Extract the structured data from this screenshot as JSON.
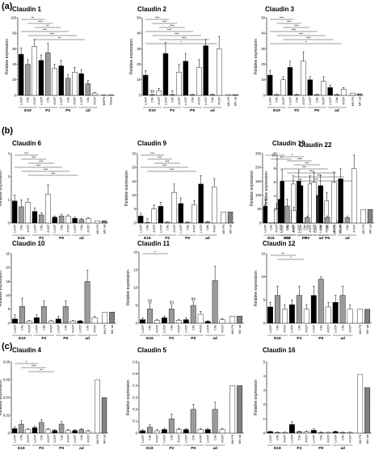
{
  "panels": [
    "(a)",
    "(b)",
    "(c)"
  ],
  "ylabel": "Relative expression",
  "colors": {
    "LVCP": "#000000",
    "Crtx": "#9a9a9a",
    "4VCP": "#ffffff",
    "MV_P9": "#ffffff",
    "MV_ad": "pattern-checker"
  },
  "chart_data": [
    {
      "type": "bar",
      "title": "Claudin 1",
      "ylabel": "Relative expression",
      "ylim": [
        0,
        100
      ],
      "yticks": [
        0,
        20,
        40,
        60,
        80,
        100
      ],
      "categories": [
        "LVCP",
        "Crtx",
        "4VCP",
        "LVCP",
        "Crtx",
        "4VCP",
        "LVCP",
        "Crtx",
        "4VCP",
        "LVCP",
        "Crtx",
        "4VCP",
        "MVP9",
        "MVad"
      ],
      "groups": [
        "E19",
        "P2",
        "P9",
        "ad"
      ],
      "values": [
        53,
        40,
        63,
        45,
        55,
        35,
        38,
        22,
        30,
        28,
        15,
        3,
        0.5,
        0.5
      ],
      "errors": [
        8,
        6,
        9,
        7,
        12,
        5,
        7,
        5,
        6,
        5,
        4,
        1,
        0,
        0
      ],
      "significance": [
        "**",
        "***",
        "**",
        "***",
        "***",
        "**"
      ]
    },
    {
      "type": "bar",
      "title": "Claudin 2",
      "ylabel": "Relative expression",
      "ylim": [
        0,
        50
      ],
      "yticks": [
        0,
        10,
        20,
        30,
        40,
        50
      ],
      "categories": [
        "LVCP",
        "Crtx",
        "4VCP",
        "LVCP",
        "Crtx",
        "4VCP",
        "LVCP",
        "Crtx",
        "4VCP",
        "LVCP",
        "Crtx",
        "4VCP",
        "MV P9",
        "MV ad"
      ],
      "groups": [
        "E19",
        "P2",
        "P9",
        "ad"
      ],
      "values": [
        13,
        0.5,
        3,
        27,
        0.5,
        15,
        22,
        0.5,
        18,
        32,
        0.5,
        30,
        0.5,
        0.5
      ],
      "errors": [
        3,
        0.2,
        1.5,
        7,
        0.2,
        5,
        5,
        0.2,
        5,
        4,
        0.2,
        8,
        0,
        0
      ],
      "annotations": [
        "§§",
        "§"
      ],
      "significance": [
        "***",
        "***",
        "***",
        "***",
        "***",
        "***",
        "*"
      ]
    },
    {
      "type": "bar",
      "title": "Claudin 3",
      "ylabel": "Relative expression",
      "ylim": [
        0,
        50
      ],
      "yticks": [
        0,
        10,
        20,
        30,
        40,
        50
      ],
      "categories": [
        "LVCP",
        "Crtx",
        "4VCP",
        "LVCP",
        "Crtx",
        "4VCP",
        "LVCP",
        "Crtx",
        "4VCP",
        "LVCP",
        "Crtx",
        "4VCP",
        "MV P9",
        "MV ad"
      ],
      "groups": [
        "E19",
        "P2",
        "P9",
        "ad"
      ],
      "values": [
        13,
        0.5,
        10,
        18,
        0.5,
        22,
        10,
        0.5,
        9,
        5,
        0.5,
        4,
        1.5,
        1
      ],
      "errors": [
        3,
        0.2,
        2,
        4,
        0.2,
        6,
        2,
        0.2,
        3,
        1.5,
        0.2,
        1,
        0,
        0
      ],
      "significance": [
        "***",
        "***",
        "***",
        "***",
        "***",
        "***",
        "*"
      ]
    },
    {
      "type": "bar",
      "title": "Claudin 6",
      "ylabel": "Relative expression",
      "ylim": [
        0,
        3
      ],
      "yticks": [
        0,
        1,
        2,
        3
      ],
      "categories": [
        "LVCP",
        "Crtx",
        "4VCP",
        "LVCP",
        "Crtx",
        "4VCP",
        "LVCP",
        "Crtx",
        "4VCP",
        "LVCP",
        "Crtx",
        "4VCP",
        "MV P9",
        "MV ad"
      ],
      "groups": [
        "E19",
        "P2",
        "P9",
        "ad"
      ],
      "values": [
        0.95,
        0.7,
        0.9,
        0.5,
        0.35,
        1.25,
        0.25,
        0.3,
        0.3,
        0.2,
        0.15,
        0.2,
        0.1,
        0.1
      ],
      "errors": [
        0.25,
        0.3,
        0.15,
        0.15,
        0.1,
        0.4,
        0.05,
        0.08,
        0.05,
        0.05,
        0.04,
        0.04,
        0,
        0
      ],
      "significance": [
        "***",
        "***",
        "***",
        "***",
        "***",
        "***"
      ]
    },
    {
      "type": "bar",
      "title": "Claudin 9",
      "ylabel": "Relative expression",
      "ylim": [
        0,
        25
      ],
      "yticks": [
        0,
        5,
        10,
        15,
        20,
        25
      ],
      "categories": [
        "LVCP",
        "Crtx",
        "4VCP",
        "LVCP",
        "Crtx",
        "4VCP",
        "LVCP",
        "Crtx",
        "4VCP",
        "LVCP",
        "Crtx",
        "4VCP",
        "MV P9",
        "MV ad"
      ],
      "groups": [
        "E19",
        "P2",
        "P9",
        "ad"
      ],
      "values": [
        2.5,
        0.2,
        5,
        6,
        0.3,
        11,
        7,
        0.3,
        6.5,
        14,
        0.4,
        13,
        4,
        4
      ],
      "errors": [
        1,
        0.1,
        1.5,
        1.5,
        0.1,
        3,
        2,
        0.1,
        1.5,
        3,
        0.1,
        3,
        0,
        0
      ],
      "annotations": [
        "§"
      ],
      "significance": [
        "***",
        "***",
        "***",
        "***",
        "***"
      ]
    },
    {
      "type": "bar",
      "title": "Claudin 19",
      "ylabel": "Relative expression",
      "ylim": [
        0,
        250
      ],
      "yticks": [
        0,
        50,
        100,
        150,
        200,
        250
      ],
      "categories": [
        "LVCP",
        "Crtx",
        "4VCP",
        "LVCP",
        "Crtx",
        "4VCP",
        "LVCP",
        "Crtx",
        "4VCP",
        "LVCP",
        "Crtx",
        "4VCP",
        "MV P9",
        "MV ad"
      ],
      "groups": [
        "E19",
        "P2",
        "P9",
        "ad"
      ],
      "values": [
        60,
        0.5,
        50,
        150,
        0.5,
        140,
        150,
        0.5,
        140,
        100,
        0.5,
        80,
        10,
        10
      ],
      "errors": [
        25,
        0.2,
        20,
        40,
        0.2,
        30,
        40,
        0.2,
        30,
        35,
        0.2,
        30,
        0,
        0
      ],
      "significance": [
        "***",
        "**"
      ]
    },
    {
      "type": "bar",
      "title": "Claudin 22",
      "ylabel": "Relative expression",
      "ylim": [
        0,
        10
      ],
      "yticks": [
        0,
        2,
        4,
        6,
        8,
        10
      ],
      "categories": [
        "LVCP",
        "Crtx",
        "4VCP",
        "LVCP",
        "Crtx",
        "4VCP",
        "LVCP",
        "Crtx",
        "4VCP",
        "LVCP",
        "Crtx",
        "4VCP",
        "MV P9",
        "MV ad"
      ],
      "groups": [
        "E19",
        "P2",
        "P9",
        "ad"
      ],
      "values": [
        3.5,
        2.5,
        1.8,
        5.5,
        0.8,
        6,
        5.5,
        0.8,
        6,
        6.5,
        0.8,
        8,
        2,
        2
      ],
      "errors": [
        1.5,
        1,
        0.5,
        1,
        0.2,
        1.5,
        1.5,
        0.2,
        1.5,
        1.5,
        0.2,
        2,
        0,
        0
      ],
      "significance": [
        "*",
        "***",
        "***",
        "***",
        "***",
        "***",
        "***"
      ]
    },
    {
      "type": "bar",
      "title": "Claudin 10",
      "ylabel": "Relative expression",
      "ylim": [
        0,
        25
      ],
      "yticks": [
        0,
        5,
        10,
        15,
        20,
        25
      ],
      "categories": [
        "LVCP",
        "Crtx",
        "4VCP",
        "LVCP",
        "Crtx",
        "4VCP",
        "LVCP",
        "Crtx",
        "4VCP",
        "LVCP",
        "Crtx",
        "4VCP",
        "MV P9",
        "MV ad"
      ],
      "groups": [
        "E19",
        "P2",
        "P9",
        "ad"
      ],
      "values": [
        1.5,
        6,
        0.8,
        2,
        6,
        0.8,
        1.5,
        6,
        0.8,
        0.8,
        15,
        2,
        4,
        4
      ],
      "errors": [
        1.5,
        3,
        0.3,
        1,
        2,
        0.3,
        1,
        2,
        0.3,
        0.3,
        4,
        0.5,
        0,
        0
      ]
    },
    {
      "type": "bar",
      "title": "Claudin 11",
      "ylabel": "Relative expression",
      "ylim": [
        0,
        20
      ],
      "yticks": [
        0,
        5,
        10,
        15,
        20
      ],
      "categories": [
        "LVCP",
        "Crtx",
        "4VCP",
        "LVCP",
        "Crtx",
        "4VCP",
        "LVCP",
        "Crtx",
        "4VCP",
        "LVCP",
        "Crtx",
        "4VCP",
        "MV P9",
        "MV ad"
      ],
      "groups": [
        "E19",
        "P2",
        "P9",
        "ad"
      ],
      "values": [
        1,
        4,
        0.8,
        1.5,
        4,
        0.8,
        1,
        5,
        2.5,
        0.5,
        12,
        1,
        2,
        2
      ],
      "errors": [
        0.5,
        1.5,
        0.3,
        0.5,
        1,
        0.3,
        0.5,
        1,
        0.8,
        0.2,
        4,
        0.3,
        0,
        0
      ],
      "annotations": [
        "§§",
        "§§",
        "§§"
      ],
      "significance": [
        "*"
      ]
    },
    {
      "type": "bar",
      "title": "Claudin 12",
      "ylabel": "Relative expression",
      "ylim": [
        0,
        15
      ],
      "yticks": [
        0,
        5,
        10,
        15
      ],
      "categories": [
        "LVCP",
        "Crtx",
        "4VCP",
        "LVCP",
        "Crtx",
        "4VCP",
        "LVCP",
        "Crtx",
        "4VCP",
        "LVCP",
        "Crtx",
        "4VCP",
        "MV P9",
        "MV ad"
      ],
      "groups": [
        "E19",
        "P2",
        "P9",
        "ad"
      ],
      "values": [
        3.5,
        6,
        3,
        4,
        6,
        3,
        6,
        9.5,
        3.5,
        4.5,
        6,
        3,
        3,
        3
      ],
      "errors": [
        1,
        2,
        1,
        1,
        2,
        1,
        2,
        0.5,
        1,
        1.5,
        2,
        1,
        0,
        0
      ],
      "significance": [
        "**",
        "*"
      ]
    },
    {
      "type": "bar",
      "title": "Claudin 4",
      "ylabel": "Relative expression",
      "ylim": [
        0,
        0.08
      ],
      "yticks": [
        0,
        0.02,
        0.04,
        0.06,
        0.08
      ],
      "categories": [
        "LVCP",
        "Crtx",
        "4VCP",
        "LVCP",
        "Crtx",
        "4VCP",
        "LVCP",
        "Crtx",
        "4VCP",
        "LVCP",
        "Crtx",
        "4VCP",
        "MV P9",
        "MV ad"
      ],
      "groups": [
        "E19",
        "P2",
        "P9",
        "ad"
      ],
      "values": [
        0.005,
        0.01,
        0.004,
        0.006,
        0.012,
        0.004,
        0.003,
        0.01,
        0.003,
        0.003,
        0.004,
        0.002,
        0.06,
        0.04
      ],
      "errors": [
        0.002,
        0.004,
        0.001,
        0.002,
        0.003,
        0.001,
        0.001,
        0.003,
        0.001,
        0.001,
        0.001,
        0.001,
        0,
        0
      ],
      "significance": [
        "*",
        "***",
        "**"
      ]
    },
    {
      "type": "bar",
      "title": "Claudin 5",
      "ylabel": "Relative expression",
      "ylim": [
        0,
        0.6
      ],
      "yticks": [
        0,
        0.1,
        0.2,
        0.3,
        0.4,
        0.5,
        0.6
      ],
      "categories": [
        "LVCP",
        "Crtx",
        "4VCP",
        "LVCP",
        "Crtx",
        "4VCP",
        "LVCP",
        "Crtx",
        "4VCP",
        "LVCP",
        "Crtx",
        "4VCP",
        "MV P9",
        "MV ad"
      ],
      "groups": [
        "E19",
        "P2",
        "P9",
        "ad"
      ],
      "values": [
        0.02,
        0.05,
        0.02,
        0.03,
        0.12,
        0.03,
        0.03,
        0.2,
        0.03,
        0.03,
        0.2,
        0.03,
        0.4,
        0.4
      ],
      "errors": [
        0.01,
        0.02,
        0.01,
        0.01,
        0.04,
        0.01,
        0.01,
        0.04,
        0.01,
        0.01,
        0.06,
        0.01,
        0,
        0
      ]
    },
    {
      "type": "bar",
      "title": "Claudin 16",
      "ylabel": "Relative expression",
      "ylim": [
        0,
        5
      ],
      "yticks": [
        0,
        1,
        2,
        3,
        4,
        5
      ],
      "categories": [
        "LVCP",
        "Crtx",
        "4VCP",
        "LVCP",
        "Crtx",
        "4VCP",
        "LVCP",
        "Crtx",
        "4VCP",
        "LVCP",
        "Crtx",
        "4VCP",
        "MV P9",
        "MV ad"
      ],
      "groups": [
        "E19",
        "P2",
        "P9",
        "ad"
      ],
      "values": [
        0.1,
        0.05,
        0.05,
        0.6,
        0.1,
        0.1,
        0.2,
        0.05,
        0.05,
        0.1,
        0.05,
        0.05,
        4.1,
        3.2
      ],
      "errors": [
        0.05,
        0.02,
        0.02,
        0.2,
        0.05,
        0.05,
        0.1,
        0.02,
        0.02,
        0.05,
        0.02,
        0.02,
        0,
        0
      ]
    }
  ]
}
